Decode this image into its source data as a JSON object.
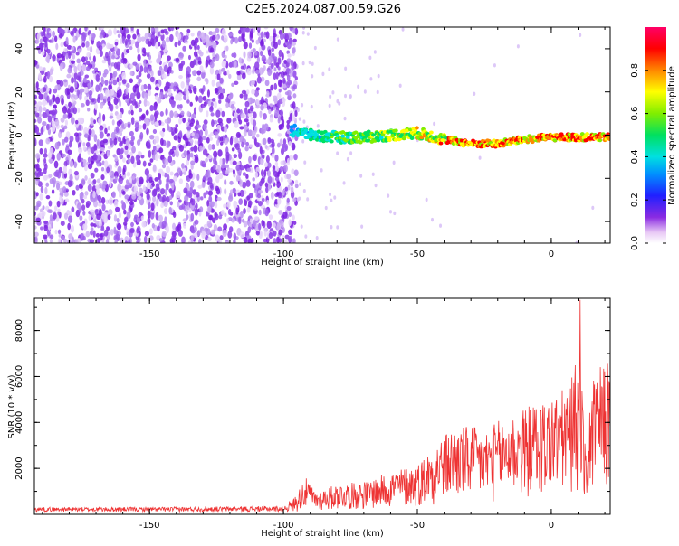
{
  "title": "C2E5.2024.087.00.59.G26",
  "chart_data": [
    {
      "type": "heatmap",
      "xlabel": "Height of straight line (km)",
      "ylabel": "Frequency (Hz)",
      "xlim": [
        -193,
        22
      ],
      "ylim": [
        -50,
        50
      ],
      "xticks": [
        -150,
        -100,
        -50,
        0
      ],
      "yticks": [
        -40,
        -20,
        0,
        20,
        40
      ],
      "colorbar": {
        "label": "Normalized spectral amplitude",
        "range": [
          0.0,
          1.0
        ],
        "ticks": [
          0.0,
          0.2,
          0.4,
          0.6,
          0.8
        ],
        "tick_labels": [
          "0.0",
          "0.2",
          "0.4",
          "0.6",
          "0.8"
        ]
      },
      "ridge": {
        "description_values": "frequency of the dominant signal vs height",
        "x": [
          -95,
          -90,
          -80,
          -70,
          -60,
          -50,
          -40,
          -30,
          -20,
          -10,
          0,
          10,
          20
        ],
        "y": [
          2,
          0,
          -1,
          -1,
          0,
          1,
          -2,
          -4,
          -4,
          -2,
          -1,
          -1,
          -1
        ]
      }
    },
    {
      "type": "line",
      "xlabel": "Height of straight line (km)",
      "ylabel": "SNR (10 * v/v)",
      "xlim": [
        -193,
        22
      ],
      "ylim": [
        0,
        9400
      ],
      "xticks": [
        -150,
        -100,
        -50,
        0
      ],
      "yticks": [
        2000,
        4000,
        6000,
        8000
      ],
      "color": "#ee3333",
      "envelope": {
        "x": [
          -193,
          -150,
          -100,
          -95,
          -92,
          -88,
          -80,
          -70,
          -60,
          -50,
          -45,
          -40,
          -35,
          -30,
          -25,
          -20,
          -15,
          -10,
          -5,
          0,
          5,
          8,
          10,
          11,
          12,
          13,
          15,
          18,
          20,
          22
        ],
        "y": [
          250,
          250,
          300,
          800,
          1500,
          900,
          1200,
          1300,
          1700,
          2000,
          2600,
          3200,
          3500,
          3500,
          3300,
          3700,
          4000,
          4200,
          4500,
          4700,
          5000,
          5500,
          6500,
          9300,
          4000,
          2200,
          5200,
          5800,
          6000,
          6100
        ]
      }
    }
  ]
}
